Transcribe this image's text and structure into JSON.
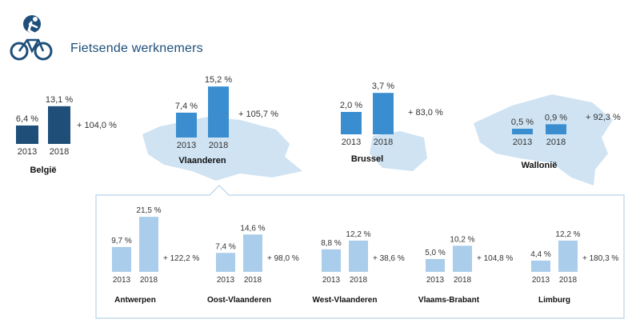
{
  "header": {
    "title": "Fietsende werknemers",
    "icon": "cyclist-icon",
    "accent": "#1d4f7a"
  },
  "colors": {
    "dark_bar": "#1f4e79",
    "light_bar": "#3a8ed0",
    "sub_bar": "#a9cdea",
    "map_fill": "#cfe3f3",
    "panel_border": "#b7d3ea"
  },
  "chart_data": [
    {
      "type": "bar",
      "region": "België",
      "categories": [
        "2013",
        "2018"
      ],
      "values": [
        6.4,
        13.1
      ],
      "value_labels": [
        "6,4 %",
        "13,1 %"
      ],
      "change_label": "+ 104,0 %",
      "style": "dark"
    },
    {
      "type": "bar",
      "region": "Vlaanderen",
      "categories": [
        "2013",
        "2018"
      ],
      "values": [
        7.4,
        15.2
      ],
      "value_labels": [
        "7,4 %",
        "15,2 %"
      ],
      "change_label": "+ 105,7 %",
      "style": "map"
    },
    {
      "type": "bar",
      "region": "Brussel",
      "categories": [
        "2013",
        "2018"
      ],
      "values": [
        2.0,
        3.7
      ],
      "value_labels": [
        "2,0 %",
        "3,7 %"
      ],
      "change_label": "+ 83,0 %",
      "style": "map"
    },
    {
      "type": "bar",
      "region": "Wallonië",
      "categories": [
        "2013",
        "2018"
      ],
      "values": [
        0.5,
        0.9
      ],
      "value_labels": [
        "0,5 %",
        "0,9 %"
      ],
      "change_label": "+ 92,3 %",
      "style": "map"
    },
    {
      "type": "bar",
      "region": "Antwerpen",
      "categories": [
        "2013",
        "2018"
      ],
      "values": [
        9.7,
        21.5
      ],
      "value_labels": [
        "9,7 %",
        "21,5 %"
      ],
      "change_label": "+ 122,2 %",
      "style": "sub"
    },
    {
      "type": "bar",
      "region": "Oost-Vlaanderen",
      "categories": [
        "2013",
        "2018"
      ],
      "values": [
        7.4,
        14.6
      ],
      "value_labels": [
        "7,4 %",
        "14,6 %"
      ],
      "change_label": "+ 98,0 %",
      "style": "sub"
    },
    {
      "type": "bar",
      "region": "West-Vlaanderen",
      "categories": [
        "2013",
        "2018"
      ],
      "values": [
        8.8,
        12.2
      ],
      "value_labels": [
        "8,8 %",
        "12,2 %"
      ],
      "change_label": "+ 38,6 %",
      "style": "sub"
    },
    {
      "type": "bar",
      "region": "Vlaams-Brabant",
      "categories": [
        "2013",
        "2018"
      ],
      "values": [
        5.0,
        10.2
      ],
      "value_labels": [
        "5,0 %",
        "10,2 %"
      ],
      "change_label": "+ 104,8 %",
      "style": "sub"
    },
    {
      "type": "bar",
      "region": "Limburg",
      "categories": [
        "2013",
        "2018"
      ],
      "values": [
        4.4,
        12.2
      ],
      "value_labels": [
        "4,4 %",
        "12,2 %"
      ],
      "change_label": "+ 180,3 %",
      "style": "sub"
    }
  ]
}
